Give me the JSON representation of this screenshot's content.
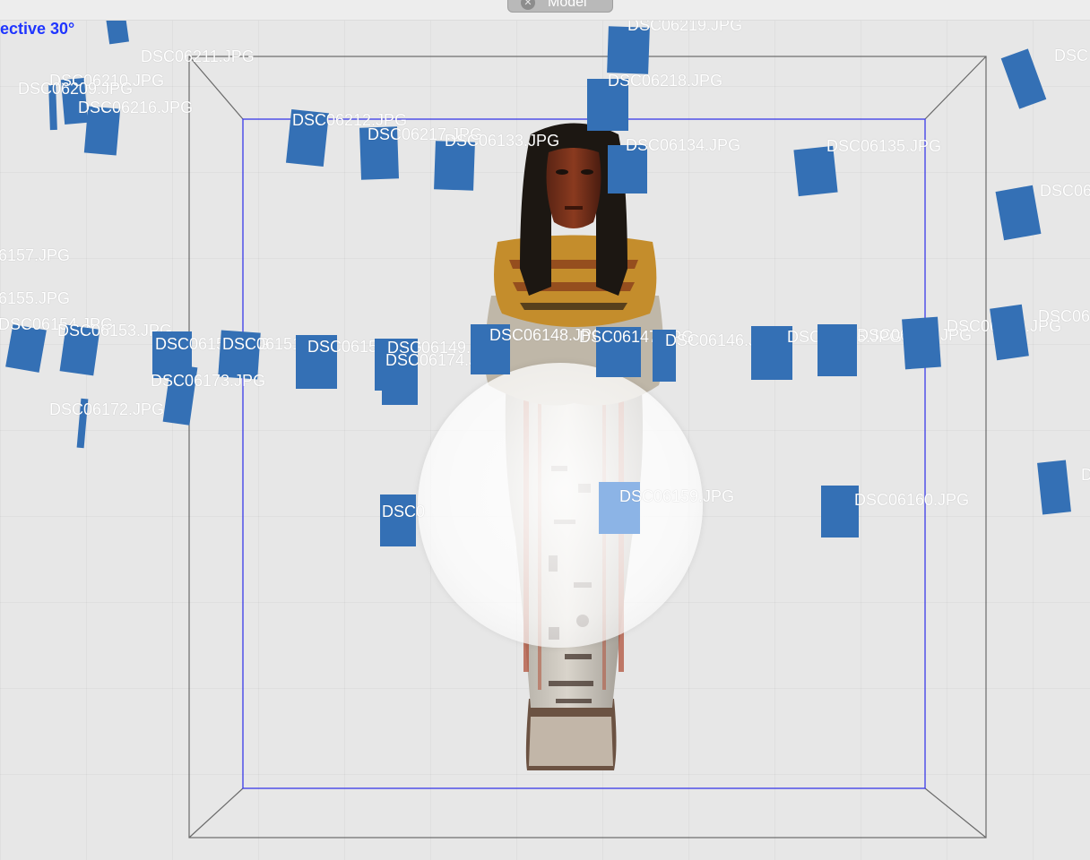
{
  "window": {
    "tab_label": "Model",
    "tab_close_icon": "close-icon"
  },
  "viewport": {
    "projection_label": "ective 30°"
  },
  "colors": {
    "background": "#e7e7e7",
    "camera_blue": "#3470b5",
    "camera_selected": "#8cb4e6",
    "bounding_box_inner": "#3a3ae8",
    "bounding_box_outer": "#6a6a6a",
    "label_text": "#ffffff",
    "projection_label": "#1f35ff"
  },
  "model": {
    "object": "ushabti-statuette"
  },
  "cameras": [
    {
      "name": "DSC06219.JPG"
    },
    {
      "name": "DSC06211.JPG"
    },
    {
      "name": "DSC06210.JPG"
    },
    {
      "name": "DSC06209.JPG"
    },
    {
      "name": "DSC06216.JPG"
    },
    {
      "name": "DSC06218.JPG"
    },
    {
      "name": "DSC06212.JPG"
    },
    {
      "name": "DSC06217.JPG"
    },
    {
      "name": "DSC06133.JPG"
    },
    {
      "name": "DSC06134.JPG"
    },
    {
      "name": "DSC06135.JPG"
    },
    {
      "name": "DSC06"
    },
    {
      "name": "DSC"
    },
    {
      "name": "6157.JPG"
    },
    {
      "name": "6155.JPG"
    },
    {
      "name": "DSC06154.JPG"
    },
    {
      "name": "DSC06153.JPG"
    },
    {
      "name": "DSC06152.JPG"
    },
    {
      "name": "DSC06151.JPG"
    },
    {
      "name": "DSC06150.JPG"
    },
    {
      "name": "DSC06149.JPG"
    },
    {
      "name": "DSC06174.JPG"
    },
    {
      "name": "DSC06148.JPG"
    },
    {
      "name": "DSC06147.JPG"
    },
    {
      "name": "DSC06146.JPG"
    },
    {
      "name": "DSC06145.JPG"
    },
    {
      "name": "DSC06144.JPG"
    },
    {
      "name": "DSC06143.JPG"
    },
    {
      "name": "DSC06"
    },
    {
      "name": "DSC06173.JPG"
    },
    {
      "name": "DSC06172.JPG"
    },
    {
      "name": "DSC0"
    },
    {
      "name": "DSC06159.JPG"
    },
    {
      "name": "DSC06160.JPG"
    },
    {
      "name": "D"
    }
  ]
}
